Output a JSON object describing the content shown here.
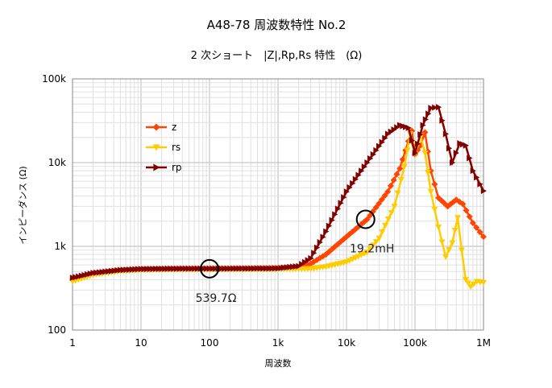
{
  "chart_data": {
    "type": "line",
    "title": "A48-78 周波数特性 No.2",
    "subtitle": "2 次ショート　|Z|,Rp,Rs 特性　(Ω)",
    "xlabel": "周波数",
    "ylabel": "インピーダンス (Ω)",
    "xscale": "log",
    "yscale": "log",
    "xlim": [
      1,
      1000000
    ],
    "ylim": [
      100,
      100000
    ],
    "xticks": [
      {
        "value": 1,
        "label": "1"
      },
      {
        "value": 10,
        "label": "10"
      },
      {
        "value": 100,
        "label": "100"
      },
      {
        "value": 1000,
        "label": "1k"
      },
      {
        "value": 10000,
        "label": "10k"
      },
      {
        "value": 100000,
        "label": "100k"
      },
      {
        "value": 1000000,
        "label": "1M"
      }
    ],
    "yticks": [
      {
        "value": 100,
        "label": "100"
      },
      {
        "value": 1000,
        "label": "1k"
      },
      {
        "value": 10000,
        "label": "10k"
      },
      {
        "value": 100000,
        "label": "100k"
      }
    ],
    "grid": true,
    "legend_position": "upper-left",
    "series": [
      {
        "name": "z",
        "color": "#ff4500",
        "marker": "diamond",
        "points": [
          [
            1,
            400
          ],
          [
            2,
            470
          ],
          [
            5,
            515
          ],
          [
            10,
            530
          ],
          [
            30,
            537
          ],
          [
            100,
            540
          ],
          [
            300,
            542
          ],
          [
            1000,
            548
          ],
          [
            2000,
            560
          ],
          [
            3000,
            620
          ],
          [
            5000,
            800
          ],
          [
            10000,
            1300
          ],
          [
            20000,
            2100
          ],
          [
            40000,
            4500
          ],
          [
            60000,
            8500
          ],
          [
            80000,
            18000
          ],
          [
            90000,
            24000
          ],
          [
            100000,
            12500
          ],
          [
            120000,
            16000
          ],
          [
            140000,
            23000
          ],
          [
            170000,
            8000
          ],
          [
            220000,
            3800
          ],
          [
            300000,
            3000
          ],
          [
            400000,
            3600
          ],
          [
            500000,
            3200
          ],
          [
            700000,
            1900
          ],
          [
            1000000,
            1300
          ]
        ]
      },
      {
        "name": "rs",
        "color": "#ffcc00",
        "marker": "triangle-down",
        "points": [
          [
            1,
            380
          ],
          [
            2,
            455
          ],
          [
            5,
            505
          ],
          [
            10,
            522
          ],
          [
            30,
            530
          ],
          [
            100,
            532
          ],
          [
            300,
            533
          ],
          [
            1000,
            534
          ],
          [
            2000,
            536
          ],
          [
            3000,
            540
          ],
          [
            5000,
            570
          ],
          [
            10000,
            650
          ],
          [
            20000,
            850
          ],
          [
            30000,
            1250
          ],
          [
            50000,
            3000
          ],
          [
            70000,
            9000
          ],
          [
            85000,
            22000
          ],
          [
            100000,
            12500
          ],
          [
            120000,
            21000
          ],
          [
            140000,
            13000
          ],
          [
            170000,
            4500
          ],
          [
            220000,
            1700
          ],
          [
            280000,
            750
          ],
          [
            350000,
            1100
          ],
          [
            420000,
            2200
          ],
          [
            480000,
            900
          ],
          [
            550000,
            400
          ],
          [
            650000,
            330
          ],
          [
            800000,
            380
          ],
          [
            1000000,
            370
          ]
        ]
      },
      {
        "name": "rp",
        "color": "#800000",
        "marker": "triangle-right",
        "points": [
          [
            1,
            420
          ],
          [
            2,
            480
          ],
          [
            5,
            520
          ],
          [
            10,
            535
          ],
          [
            30,
            540
          ],
          [
            100,
            541
          ],
          [
            300,
            542
          ],
          [
            1000,
            545
          ],
          [
            2000,
            580
          ],
          [
            3000,
            720
          ],
          [
            5000,
            1500
          ],
          [
            10000,
            4500
          ],
          [
            20000,
            10000
          ],
          [
            40000,
            22000
          ],
          [
            60000,
            28000
          ],
          [
            80000,
            26000
          ],
          [
            100000,
            13000
          ],
          [
            130000,
            28000
          ],
          [
            170000,
            45000
          ],
          [
            220000,
            46000
          ],
          [
            280000,
            22000
          ],
          [
            350000,
            10000
          ],
          [
            450000,
            17000
          ],
          [
            550000,
            16000
          ],
          [
            700000,
            8000
          ],
          [
            1000000,
            4600
          ]
        ]
      }
    ],
    "annotations": [
      {
        "text": "539.7Ω",
        "x": 100,
        "y": 540,
        "label_position": "below"
      },
      {
        "text": "19.2mH",
        "x": 19000,
        "y": 2100,
        "label_position": "below"
      }
    ]
  }
}
